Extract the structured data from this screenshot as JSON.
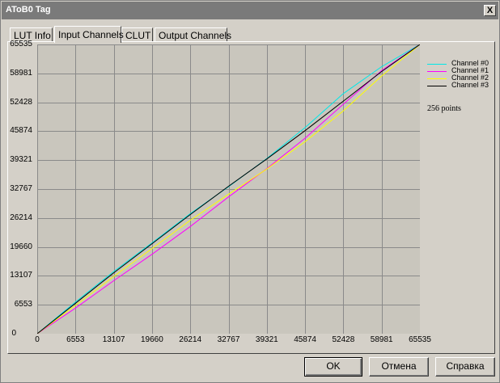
{
  "window": {
    "title": "AToB0 Tag",
    "close_label": "X"
  },
  "tabs": [
    {
      "label": "LUT Info",
      "active": false
    },
    {
      "label": "Input Channels",
      "active": true
    },
    {
      "label": "CLUT",
      "active": false
    },
    {
      "label": "Output Channels",
      "active": false
    }
  ],
  "chart_data": {
    "type": "line",
    "xlim": [
      0,
      65535
    ],
    "ylim": [
      0,
      65535
    ],
    "x_ticks": [
      "0",
      "6553",
      "13107",
      "19660",
      "26214",
      "32767",
      "39321",
      "45874",
      "52428",
      "58981",
      "65535"
    ],
    "y_ticks": [
      "0",
      "6553",
      "13107",
      "19660",
      "26214",
      "32767",
      "39321",
      "45874",
      "52428",
      "58981",
      "65535"
    ],
    "grid": true,
    "legend_position": "right",
    "points_label": "256 points",
    "series": [
      {
        "name": "Channel #0",
        "color": "#00e8e8",
        "x": [
          0,
          6553,
          13107,
          19660,
          26214,
          32767,
          39321,
          45874,
          52428,
          58981,
          65535
        ],
        "y": [
          0,
          7200,
          14100,
          20600,
          27200,
          33300,
          39700,
          46700,
          54400,
          60500,
          65535
        ]
      },
      {
        "name": "Channel #1",
        "color": "#ff00ff",
        "x": [
          0,
          6553,
          13107,
          19660,
          26214,
          32767,
          39321,
          45874,
          52428,
          58981,
          65535
        ],
        "y": [
          0,
          5800,
          12000,
          18000,
          24300,
          31000,
          37400,
          44300,
          52000,
          59600,
          65535
        ]
      },
      {
        "name": "Channel #2",
        "color": "#ffff00",
        "x": [
          0,
          6553,
          13107,
          19660,
          26214,
          32767,
          39321,
          45874,
          52428,
          58981,
          65535
        ],
        "y": [
          0,
          6400,
          13000,
          19300,
          25700,
          31600,
          37300,
          43500,
          50500,
          58400,
          65535
        ]
      },
      {
        "name": "Channel #3",
        "color": "#000000",
        "x": [
          0,
          6553,
          13107,
          19660,
          26214,
          32767,
          39321,
          45874,
          52428,
          58981,
          65535
        ],
        "y": [
          0,
          6900,
          13800,
          20400,
          27000,
          33400,
          39600,
          46000,
          52700,
          59400,
          65535
        ]
      }
    ]
  },
  "buttons": {
    "ok": "OK",
    "cancel": "Отмена",
    "help": "Справка"
  }
}
